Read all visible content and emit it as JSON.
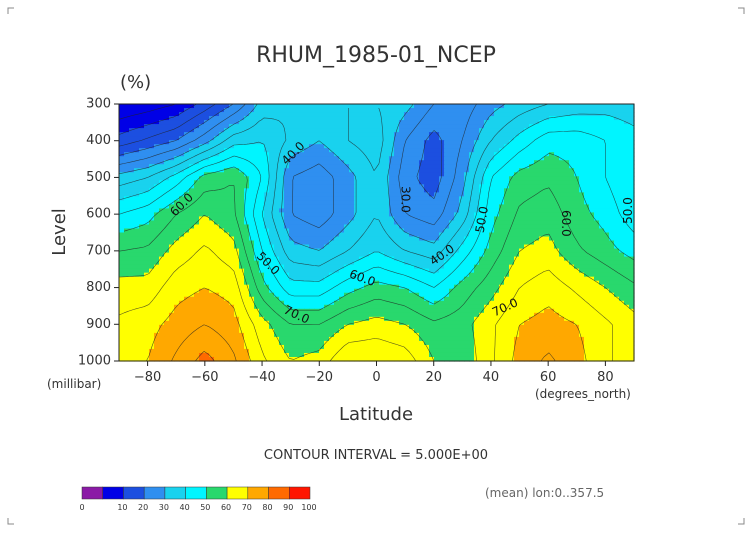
{
  "chart_data": {
    "type": "contour",
    "title": "RHUM_1985-01_NCEP",
    "units": "(%)",
    "xlabel": "Latitude",
    "ylabel": "Level",
    "x_unit_label": "(degrees_north)",
    "y_unit_label": "(millibar)",
    "xlim": [
      -90,
      90
    ],
    "ylim": [
      1000,
      300
    ],
    "x_ticks": [
      -80,
      -60,
      -40,
      -20,
      0,
      20,
      40,
      60,
      80
    ],
    "y_ticks": [
      300,
      400,
      500,
      600,
      700,
      800,
      900,
      1000
    ],
    "contour_interval_text": "CONTOUR INTERVAL = 5.000E+00",
    "note": "(mean) lon:0..357.5",
    "contour_labels": [
      "40.0",
      "60.0",
      "50.0",
      "30.0",
      "40.0",
      "50.0",
      "60.0",
      "60.0",
      "70.0",
      "70.0",
      "50.0"
    ],
    "colorbar": {
      "ticks": [
        "0",
        "10",
        "20",
        "30",
        "40",
        "50",
        "60",
        "70",
        "80",
        "90",
        "100"
      ],
      "colors": [
        "#8b1aa6",
        "#0000e6",
        "#1c4fe0",
        "#2f8ff0",
        "#19d2ee",
        "#00f5ff",
        "#29d86d",
        "#ffff00",
        "#ffa800",
        "#ff6a00",
        "#ff1500"
      ]
    },
    "levels_mb": [
      300,
      400,
      500,
      600,
      700,
      800,
      900,
      1000
    ],
    "latitudes": [
      -90,
      -80,
      -70,
      -60,
      -50,
      -40,
      -30,
      -20,
      -10,
      0,
      10,
      20,
      30,
      40,
      50,
      60,
      70,
      80,
      90
    ],
    "values": [
      [
        10,
        12,
        15,
        22,
        30,
        42,
        45,
        45,
        45,
        45,
        42,
        35,
        32,
        38,
        42,
        45,
        47,
        48,
        47
      ],
      [
        22,
        26,
        30,
        38,
        48,
        50,
        44,
        40,
        45,
        48,
        35,
        28,
        35,
        45,
        52,
        58,
        58,
        55,
        52
      ],
      [
        42,
        45,
        52,
        62,
        65,
        55,
        35,
        32,
        38,
        45,
        32,
        27,
        38,
        55,
        62,
        64,
        60,
        55,
        50
      ],
      [
        55,
        58,
        65,
        70,
        66,
        50,
        35,
        32,
        38,
        45,
        35,
        32,
        42,
        58,
        66,
        68,
        62,
        58,
        52
      ],
      [
        65,
        66,
        72,
        76,
        72,
        55,
        42,
        40,
        45,
        50,
        45,
        42,
        52,
        62,
        70,
        72,
        66,
        62,
        58
      ],
      [
        72,
        72,
        78,
        80,
        78,
        62,
        52,
        52,
        58,
        62,
        60,
        55,
        62,
        68,
        75,
        78,
        74,
        70,
        66
      ],
      [
        76,
        78,
        82,
        85,
        82,
        72,
        65,
        65,
        70,
        72,
        70,
        66,
        68,
        74,
        80,
        82,
        80,
        76,
        72
      ],
      [
        78,
        80,
        86,
        92,
        86,
        76,
        70,
        72,
        80,
        80,
        78,
        70,
        66,
        74,
        82,
        86,
        82,
        76,
        72
      ]
    ]
  }
}
